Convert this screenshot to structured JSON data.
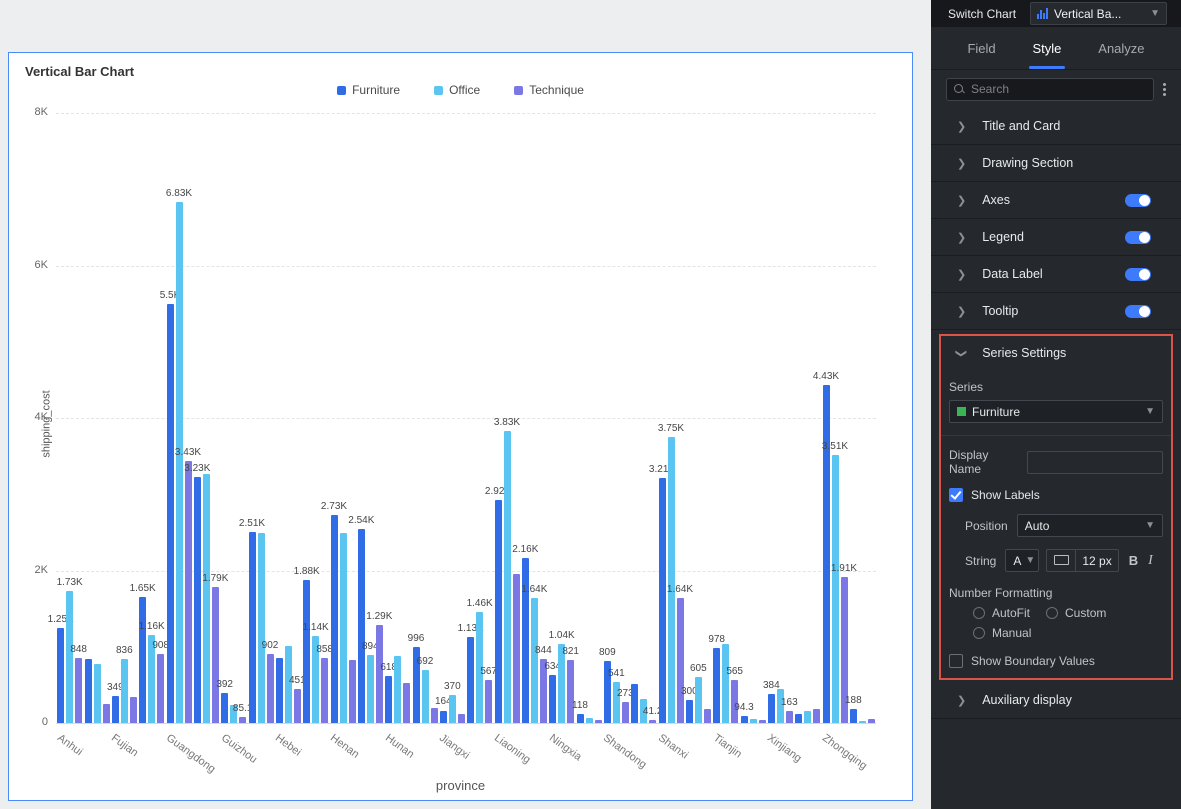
{
  "chart_data": {
    "type": "bar",
    "title": "Vertical Bar Chart",
    "xlabel": "province",
    "ylabel": "shipping_cost",
    "ylim": [
      0,
      8000
    ],
    "yticks": [
      {
        "value": 0,
        "label": "0"
      },
      {
        "value": 2000,
        "label": "2K"
      },
      {
        "value": 4000,
        "label": "4K"
      },
      {
        "value": 6000,
        "label": "6K"
      },
      {
        "value": 8000,
        "label": "8K"
      }
    ],
    "grid": "dashed horizontal",
    "legend_position": "top",
    "x_label_every": 2,
    "categories": [
      "Anhui",
      "",
      "Fujian",
      "",
      "Guangdong",
      "",
      "Guizhou",
      "",
      "Hebei",
      "",
      "Henan",
      "",
      "Hunan",
      "",
      "Jiangxi",
      "",
      "Liaoning",
      "",
      "Ningxia",
      "",
      "Shandong",
      "",
      "Shanxi",
      "",
      "Tianjin",
      "",
      "Xinjiang",
      "",
      "Zhongqing",
      ""
    ],
    "series": [
      {
        "name": "Furniture",
        "color": "#2F6CE5",
        "values": [
          1250,
          835,
          349,
          1650,
          5500,
          3230,
          392,
          2510,
          856,
          1880,
          2730,
          2540,
          618,
          996,
          164,
          1130,
          2920,
          2160,
          634,
          118,
          809,
          513,
          3210,
          300,
          978,
          94.3,
          384,
          120,
          4430,
          188
        ],
        "labels": [
          "1.25K",
          null,
          "349",
          "1.65K",
          "5.5K",
          "3.23K",
          "392",
          "2.51K",
          null,
          "1.88K",
          "2.73K",
          "2.54K",
          "618",
          "996",
          "164",
          "1.13K",
          "2.92K",
          "2.16K",
          "634",
          "118",
          "809",
          null,
          "3.21K",
          "300",
          "978",
          "94.3",
          "384",
          null,
          "4.43K",
          "188"
        ]
      },
      {
        "name": "Office",
        "color": "#5BC5F2",
        "values": [
          1730,
          780,
          836,
          1160,
          6830,
          3270,
          230,
          2490,
          1013,
          1140,
          2490,
          894,
          881,
          692,
          370,
          1460,
          3830,
          1640,
          1040,
          60,
          541,
          316,
          3750,
          605,
          1030,
          50,
          440,
          160,
          3510,
          30
        ],
        "labels": [
          "1.73K",
          null,
          "836",
          "1.16K",
          "6.83K",
          null,
          null,
          null,
          null,
          "1.14K",
          null,
          "894",
          null,
          "692",
          "370",
          "1.46K",
          "3.83K",
          "1.64K",
          "1.04K",
          null,
          "541",
          null,
          "3.75K",
          "605",
          null,
          null,
          null,
          null,
          "3.51K",
          null
        ]
      },
      {
        "name": "Technique",
        "color": "#7B78E6",
        "values": [
          848,
          250,
          342,
          908,
          3430,
          1790,
          85.1,
          902,
          451,
          858,
          829,
          1290,
          526,
          201,
          120,
          567,
          1960,
          844,
          821,
          45,
          273,
          41.2,
          1640,
          184,
          565,
          35,
          163,
          180,
          1910,
          50
        ],
        "labels": [
          "848",
          null,
          null,
          "908",
          "3.43K",
          "1.79K",
          "85.1",
          "902",
          "451",
          "858",
          null,
          "1.29K",
          null,
          null,
          null,
          "567",
          null,
          "844",
          "821",
          null,
          "273",
          "41.2",
          "1.64K",
          null,
          "565",
          null,
          "163",
          null,
          "1.91K",
          null
        ]
      }
    ]
  },
  "panel": {
    "switch_chart": "Switch Chart",
    "chart_type": "Vertical Ba...",
    "tabs": [
      {
        "label": "Field"
      },
      {
        "label": "Style"
      },
      {
        "label": "Analyze"
      }
    ],
    "active_tab": "Style",
    "search_placeholder": "Search",
    "sections": [
      {
        "label": "Title and Card",
        "toggle": false
      },
      {
        "label": "Drawing Section",
        "toggle": false
      },
      {
        "label": "Axes",
        "toggle": true
      },
      {
        "label": "Legend",
        "toggle": true
      },
      {
        "label": "Data Label",
        "toggle": true
      },
      {
        "label": "Tooltip",
        "toggle": true
      }
    ],
    "series_settings": {
      "title": "Series Settings",
      "series_label": "Series",
      "series_value": "Furniture",
      "series_swatch_color": "#3BB554",
      "display_name_label": "Display Name",
      "display_name_value": "",
      "show_labels_label": "Show Labels",
      "show_labels_checked": true,
      "position_label": "Position",
      "position_value": "Auto",
      "string_label": "String",
      "string_font": "A",
      "font_size": "12 px",
      "bold_label": "B",
      "italic_label": "I",
      "number_formatting_label": "Number Formatting",
      "number_options": [
        "AutoFit",
        "Custom",
        "Manual"
      ],
      "show_boundary_label": "Show Boundary Values",
      "show_boundary_checked": false,
      "highlight_color": "#DC5449"
    },
    "auxiliary_label": "Auxiliary display",
    "accent_color": "#3E7BFA"
  }
}
